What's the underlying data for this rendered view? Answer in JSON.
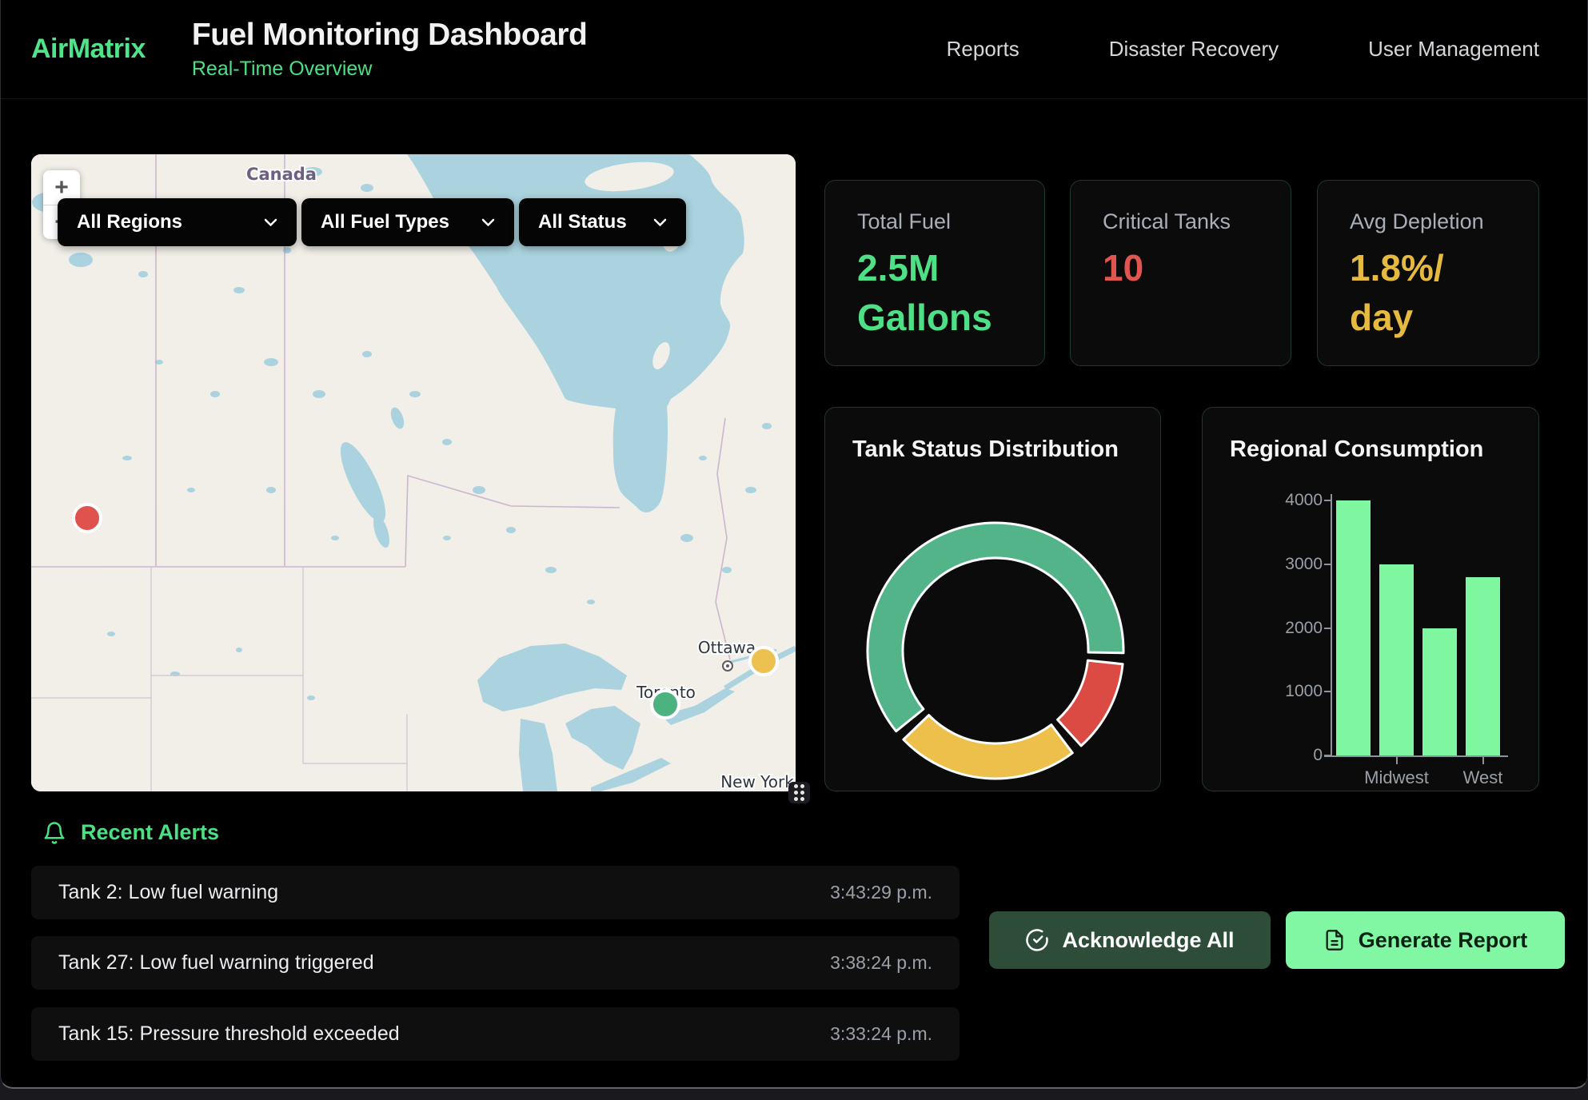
{
  "brand": {
    "logo": "AirMatrix",
    "title": "Fuel Monitoring Dashboard",
    "subtitle": "Real-Time Overview"
  },
  "nav": [
    {
      "label": "Reports"
    },
    {
      "label": "Disaster Recovery"
    },
    {
      "label": "User Management"
    }
  ],
  "map": {
    "zoom_in": "+",
    "zoom_out": "−",
    "filters": [
      {
        "value": "All Regions"
      },
      {
        "value": "All Fuel Types"
      },
      {
        "value": "All Status"
      }
    ],
    "labels": {
      "country": "Canada",
      "city1": "Ottawa",
      "city2": "Toronto",
      "city3": "New York"
    },
    "markers": [
      {
        "name": "marker-critical",
        "color": "#e0524e"
      },
      {
        "name": "marker-warning",
        "color": "#ecc14f"
      },
      {
        "name": "marker-normal",
        "color": "#4cb380"
      }
    ],
    "colors": {
      "land": "#f2efe9",
      "water": "#aad3df",
      "admin_border": "#c3a6ca"
    }
  },
  "kpis": [
    {
      "label": "Total Fuel",
      "value": "2.5M Gallons",
      "color": "#4fe087"
    },
    {
      "label": "Critical Tanks",
      "value": "10",
      "color": "#e0554f"
    },
    {
      "label": "Avg Depletion",
      "value": "1.8%/day",
      "color": "#e6b93f"
    }
  ],
  "chart_data": [
    {
      "type": "pie",
      "donut": true,
      "title": "Tank Status Distribution",
      "legend": false,
      "segments": [
        {
          "name": "normal",
          "color": "#52b488",
          "start_deg": 231,
          "end_deg": 451,
          "share_pct": 64
        },
        {
          "name": "critical",
          "color": "#db4b44",
          "start_deg": 96,
          "end_deg": 138,
          "share_pct": 12
        },
        {
          "name": "warning",
          "color": "#ecc04a",
          "start_deg": 143,
          "end_deg": 226,
          "share_pct": 24
        }
      ]
    },
    {
      "type": "bar",
      "title": "Regional Consumption",
      "values": [
        4000,
        3000,
        2000,
        2800
      ],
      "x_tick_labels": [
        {
          "bar_index": 1,
          "label": "Midwest"
        },
        {
          "bar_index": 3,
          "label": "West"
        }
      ],
      "y_ticks": [
        0,
        1000,
        2000,
        3000,
        4000
      ],
      "ylim": [
        0,
        4000
      ],
      "bar_color": "#7ef7a0",
      "grid": false,
      "legend_position": "none"
    }
  ],
  "alerts": {
    "header": "Recent Alerts",
    "items": [
      {
        "message": "Tank 2: Low fuel warning",
        "time": "3:43:29 p.m."
      },
      {
        "message": "Tank 27: Low fuel warning triggered",
        "time": "3:38:24 p.m."
      },
      {
        "message": "Tank 15: Pressure threshold exceeded",
        "time": "3:33:24 p.m."
      }
    ]
  },
  "actions": {
    "acknowledge": "Acknowledge All",
    "generate": "Generate Report"
  }
}
